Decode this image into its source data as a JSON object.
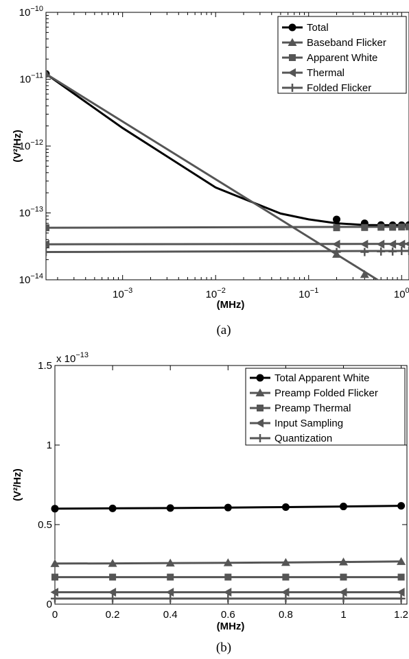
{
  "chart_data": [
    {
      "type": "line",
      "panel_label": "(a)",
      "xlabel": "(MHz)",
      "ylabel": "(V²/Hz)",
      "xscale": "log",
      "yscale": "log",
      "xlim": [
        0.00015,
        1.2
      ],
      "ylim": [
        1e-14,
        1e-10
      ],
      "x_ticks": [
        {
          "value": 0.001,
          "base": "10",
          "exp": "−3"
        },
        {
          "value": 0.01,
          "base": "10",
          "exp": "−2"
        },
        {
          "value": 0.1,
          "base": "10",
          "exp": "−1"
        },
        {
          "value": 1,
          "base": "10",
          "exp": "0"
        }
      ],
      "y_ticks": [
        {
          "value": 1e-14,
          "base": "10",
          "exp": "−14"
        },
        {
          "value": 1e-13,
          "base": "10",
          "exp": "−13"
        },
        {
          "value": 1e-12,
          "base": "10",
          "exp": "−12"
        },
        {
          "value": 1e-11,
          "base": "10",
          "exp": "−11"
        },
        {
          "value": 1e-10,
          "base": "10",
          "exp": "−10"
        }
      ],
      "grid": false,
      "legend_position": "top-right",
      "series": [
        {
          "name": "Total",
          "color": "#000000",
          "marker": "circle",
          "line_x": [
            0.00015,
            0.001,
            0.01,
            0.05,
            0.1,
            0.2,
            0.4,
            0.6,
            0.8,
            1.0,
            1.2
          ],
          "line_y": [
            1.2e-11,
            1.86e-12,
            2.4e-13,
            9.8e-14,
            8e-14,
            7e-14,
            6.6e-14,
            6.55e-14,
            6.55e-14,
            6.6e-14,
            6.6e-14
          ],
          "marker_x": [
            0.00015,
            0.2,
            0.4,
            0.6,
            0.8,
            1.0,
            1.2
          ],
          "marker_y": [
            1.2e-11,
            8e-14,
            7e-14,
            6.6e-14,
            6.55e-14,
            6.55e-14,
            6.6e-14
          ]
        },
        {
          "name": "Baseband Flicker",
          "color": "#555555",
          "marker": "triangle-up",
          "line_x": [
            0.00015,
            0.55
          ],
          "line_y": [
            1.2e-11,
            1e-14
          ],
          "marker_x": [
            0.00015,
            0.2,
            0.4
          ],
          "marker_y": [
            1.2e-11,
            2.4e-14,
            1.2e-14
          ]
        },
        {
          "name": "Apparent White",
          "color": "#555555",
          "marker": "square",
          "line_x": [
            0.00015,
            1.2
          ],
          "line_y": [
            6e-14,
            6.2e-14
          ],
          "marker_x": [
            0.00015,
            0.2,
            0.4,
            0.6,
            0.8,
            1.0,
            1.2
          ],
          "marker_y": [
            6e-14,
            6e-14,
            6.05e-14,
            6.1e-14,
            6.1e-14,
            6.15e-14,
            6.2e-14
          ]
        },
        {
          "name": "Thermal",
          "color": "#555555",
          "marker": "triangle-left",
          "line_x": [
            0.00015,
            1.2
          ],
          "line_y": [
            3.4e-14,
            3.45e-14
          ],
          "marker_x": [
            0.00015,
            0.2,
            0.4,
            0.6,
            0.8,
            1.0,
            1.2
          ],
          "marker_y": [
            3.4e-14,
            3.4e-14,
            3.4e-14,
            3.4e-14,
            3.4e-14,
            3.4e-14,
            3.45e-14
          ]
        },
        {
          "name": "Folded Flicker",
          "color": "#555555",
          "marker": "plus",
          "line_x": [
            0.00015,
            1.2
          ],
          "line_y": [
            2.6e-14,
            2.7e-14
          ],
          "marker_x": [
            0.00015,
            0.2,
            0.4,
            0.6,
            0.8,
            1.0,
            1.2
          ],
          "marker_y": [
            2.6e-14,
            2.6e-14,
            2.6e-14,
            2.65e-14,
            2.65e-14,
            2.7e-14,
            2.7e-14
          ]
        }
      ]
    },
    {
      "type": "line",
      "panel_label": "(b)",
      "xlabel": "(MHz)",
      "ylabel": "(V²/Hz)",
      "y_multiplier": {
        "prefix": "x 10",
        "exp": "−13"
      },
      "xlim": [
        0,
        1.22
      ],
      "ylim": [
        0,
        1.5
      ],
      "x_ticks": [
        {
          "value": 0,
          "label": "0"
        },
        {
          "value": 0.2,
          "label": "0.2"
        },
        {
          "value": 0.4,
          "label": "0.4"
        },
        {
          "value": 0.6,
          "label": "0.6"
        },
        {
          "value": 0.8,
          "label": "0.8"
        },
        {
          "value": 1.0,
          "label": "1"
        },
        {
          "value": 1.2,
          "label": "1.2"
        }
      ],
      "y_ticks": [
        {
          "value": 0,
          "label": "0"
        },
        {
          "value": 0.5,
          "label": "0.5"
        },
        {
          "value": 1.0,
          "label": "1"
        },
        {
          "value": 1.5,
          "label": "1.5"
        }
      ],
      "grid": false,
      "legend_position": "top-right",
      "series": [
        {
          "name": "Total Apparent White",
          "color": "#000000",
          "marker": "circle",
          "x": [
            0,
            0.2,
            0.4,
            0.6,
            0.8,
            1.0,
            1.2
          ],
          "y": [
            0.6,
            0.602,
            0.604,
            0.607,
            0.61,
            0.614,
            0.618
          ]
        },
        {
          "name": "Preamp Folded Flicker",
          "color": "#555555",
          "marker": "triangle-up",
          "x": [
            0,
            0.2,
            0.4,
            0.6,
            0.8,
            1.0,
            1.2
          ],
          "y": [
            0.255,
            0.256,
            0.258,
            0.26,
            0.262,
            0.265,
            0.268
          ]
        },
        {
          "name": "Preamp Thermal",
          "color": "#555555",
          "marker": "square",
          "x": [
            0,
            0.2,
            0.4,
            0.6,
            0.8,
            1.0,
            1.2
          ],
          "y": [
            0.17,
            0.17,
            0.17,
            0.17,
            0.17,
            0.17,
            0.17
          ]
        },
        {
          "name": "Input Sampling",
          "color": "#555555",
          "marker": "triangle-left",
          "x": [
            0,
            0.2,
            0.4,
            0.6,
            0.8,
            1.0,
            1.2
          ],
          "y": [
            0.075,
            0.075,
            0.075,
            0.075,
            0.075,
            0.075,
            0.075
          ]
        },
        {
          "name": "Quantization",
          "color": "#555555",
          "marker": "plus",
          "x": [
            0,
            0.2,
            0.4,
            0.6,
            0.8,
            1.0,
            1.2
          ],
          "y": [
            0.035,
            0.035,
            0.035,
            0.035,
            0.035,
            0.035,
            0.035
          ]
        }
      ]
    }
  ]
}
